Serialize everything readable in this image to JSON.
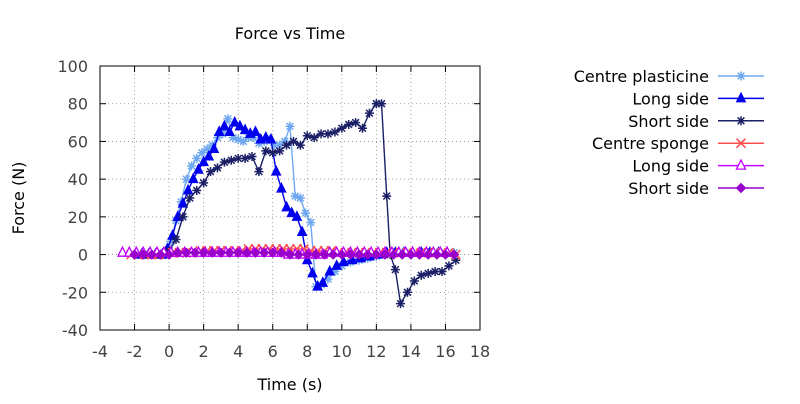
{
  "chart_data": {
    "type": "line",
    "title": "Force vs Time",
    "xlabel": "Time (s)",
    "ylabel": "Force (N)",
    "xlim": [
      -4,
      18
    ],
    "ylim": [
      -40,
      100
    ],
    "xticks": [
      -4,
      -2,
      0,
      2,
      4,
      6,
      8,
      10,
      12,
      14,
      16,
      18
    ],
    "yticks": [
      -40,
      -20,
      0,
      20,
      40,
      60,
      80,
      100
    ],
    "grid": true,
    "legend_position": "right",
    "series": [
      {
        "name": "Centre plasticine",
        "color": "#6fa8f0",
        "marker": "asterisk",
        "x": [
          -1.8,
          -1.4,
          -1.0,
          -0.6,
          -0.2,
          0.1,
          0.4,
          0.7,
          1.0,
          1.3,
          1.6,
          1.9,
          2.2,
          2.5,
          2.8,
          3.1,
          3.4,
          3.7,
          4.0,
          4.3,
          4.6,
          4.9,
          5.2,
          5.5,
          5.8,
          6.1,
          6.4,
          6.7,
          7.0,
          7.3,
          7.6,
          7.9,
          8.2,
          8.5,
          8.8,
          9.2,
          9.6,
          10.0,
          10.5,
          11.0,
          11.5,
          12.0,
          12.5,
          13.0,
          13.5,
          14.0,
          14.5,
          15.0,
          15.5,
          16.0,
          16.5
        ],
        "y": [
          0,
          0,
          0,
          0,
          0,
          7,
          18,
          28,
          40,
          47,
          51,
          54,
          56,
          58,
          62,
          64,
          72,
          62,
          61,
          60,
          62,
          62,
          59,
          60,
          61,
          58,
          58,
          60,
          68,
          31,
          30,
          22,
          17,
          -17,
          -16,
          -13,
          -9,
          -6,
          -4,
          -3,
          -2,
          -1,
          0,
          1,
          1,
          1,
          1,
          1,
          1,
          1,
          1
        ]
      },
      {
        "name": "Long side",
        "color": "#0000ee",
        "marker": "triangle-filled",
        "x": [
          -1.6,
          -1.2,
          -0.8,
          -0.4,
          -0.1,
          0.2,
          0.5,
          0.8,
          1.1,
          1.4,
          1.7,
          2.0,
          2.3,
          2.6,
          2.9,
          3.2,
          3.5,
          3.8,
          4.1,
          4.4,
          4.7,
          5.0,
          5.3,
          5.6,
          5.9,
          6.2,
          6.5,
          6.8,
          7.1,
          7.4,
          7.7,
          8.0,
          8.3,
          8.6,
          8.9,
          9.3,
          9.7,
          10.1,
          10.6,
          11.1,
          11.6,
          12.1,
          12.6,
          13.1,
          13.6,
          14.1,
          14.6,
          15.1,
          15.6,
          16.1
        ],
        "y": [
          0,
          0,
          0,
          0,
          3,
          10,
          20,
          27,
          34,
          40,
          45,
          49,
          52,
          56,
          65,
          68,
          65,
          70,
          68,
          66,
          64,
          65,
          61,
          62,
          61,
          44,
          35,
          25,
          22,
          20,
          12,
          -3,
          -10,
          -17,
          -15,
          -9,
          -6,
          -4,
          -3,
          -2,
          -1,
          0,
          1,
          1,
          1,
          1,
          1,
          1,
          1,
          1
        ]
      },
      {
        "name": "Short side",
        "color": "#1a1f66",
        "marker": "asterisk",
        "x": [
          -1.5,
          -1.0,
          -0.5,
          0.0,
          0.4,
          0.8,
          1.2,
          1.6,
          2.0,
          2.4,
          2.8,
          3.2,
          3.6,
          4.0,
          4.4,
          4.8,
          5.2,
          5.6,
          6.0,
          6.4,
          6.8,
          7.2,
          7.6,
          8.0,
          8.4,
          8.8,
          9.2,
          9.6,
          10.0,
          10.4,
          10.8,
          11.2,
          11.6,
          12.0,
          12.3,
          12.6,
          12.8,
          13.1,
          13.4,
          13.8,
          14.2,
          14.6,
          15.0,
          15.4,
          15.8,
          16.2,
          16.6
        ],
        "y": [
          0,
          0,
          0,
          2,
          8,
          20,
          30,
          34,
          38,
          44,
          46,
          49,
          50,
          51,
          51,
          52,
          44,
          55,
          54,
          55,
          58,
          60,
          58,
          63,
          62,
          64,
          64,
          65,
          67,
          69,
          70,
          67,
          75,
          80,
          80,
          31,
          0,
          -8,
          -26,
          -20,
          -14,
          -11,
          -10,
          -9,
          -9,
          -6,
          -3
        ]
      },
      {
        "name": "Centre sponge",
        "color": "#ff4c4c",
        "marker": "x",
        "x": [
          -2.2,
          -1.8,
          -1.4,
          -1.0,
          -0.6,
          -0.2,
          0.2,
          0.6,
          1.0,
          1.4,
          1.8,
          2.2,
          2.6,
          3.0,
          3.4,
          3.8,
          4.2,
          4.6,
          5.0,
          5.4,
          5.8,
          6.2,
          6.6,
          7.0,
          7.4,
          7.8,
          8.2,
          8.6,
          9.0,
          9.4,
          9.8,
          10.2,
          10.6,
          11.0,
          11.4,
          11.8,
          12.2,
          12.6,
          13.0,
          13.4,
          13.8,
          14.2,
          14.6,
          15.0,
          15.4,
          15.8,
          16.2,
          16.6
        ],
        "y": [
          0,
          0,
          0,
          0,
          0,
          0,
          1,
          1,
          1,
          1,
          2,
          2,
          2,
          2,
          2,
          2,
          2,
          3,
          3,
          3,
          3,
          3,
          3,
          3,
          3,
          3,
          2,
          2,
          2,
          2,
          1,
          1,
          1,
          1,
          1,
          1,
          1,
          1,
          1,
          1,
          1,
          1,
          1,
          1,
          1,
          1,
          1,
          0
        ]
      },
      {
        "name": "Long side",
        "color": "#c000ff",
        "marker": "triangle-open",
        "x": [
          -2.7,
          -2.3,
          -1.9,
          -1.5,
          -1.1,
          -0.7,
          -0.3,
          0.1,
          0.5,
          0.9,
          1.3,
          1.7,
          2.1,
          2.5,
          2.9,
          3.3,
          3.7,
          4.1,
          4.5,
          4.9,
          5.3,
          5.7,
          6.1,
          6.5,
          6.9,
          7.3,
          7.7,
          8.1,
          8.5,
          8.9,
          9.3,
          9.7,
          10.1,
          10.5,
          10.9,
          11.3,
          11.7,
          12.1,
          12.5,
          12.9,
          13.3,
          13.7,
          14.1,
          14.5,
          14.9,
          15.3,
          15.7,
          16.1
        ],
        "y": [
          1,
          1,
          1,
          1,
          1,
          1,
          1,
          1,
          1,
          1,
          1,
          1,
          1,
          1,
          1,
          1,
          1,
          1,
          1,
          1,
          1,
          1,
          1,
          1,
          0,
          0,
          0,
          0,
          0,
          0,
          1,
          1,
          1,
          1,
          1,
          1,
          1,
          1,
          1,
          1,
          1,
          1,
          1,
          1,
          1,
          1,
          1,
          1
        ]
      },
      {
        "name": "Short side",
        "color": "#9900cc",
        "marker": "diamond-filled",
        "x": [
          -2.0,
          -1.5,
          -1.0,
          -0.5,
          0.0,
          0.5,
          1.0,
          1.5,
          2.0,
          2.5,
          3.0,
          3.5,
          4.0,
          4.5,
          5.0,
          5.5,
          6.0,
          6.5,
          7.0,
          7.5,
          8.0,
          8.5,
          9.0,
          9.5,
          10.0,
          10.5,
          11.0,
          11.5,
          12.0,
          12.5,
          13.0,
          13.5,
          14.0,
          14.5,
          15.0,
          15.5,
          16.0,
          16.5
        ],
        "y": [
          0,
          0,
          0,
          0,
          0,
          1,
          1,
          1,
          1,
          1,
          1,
          1,
          1,
          1,
          1,
          1,
          1,
          1,
          0,
          0,
          0,
          0,
          0,
          0,
          0,
          0,
          0,
          0,
          0,
          0,
          0,
          0,
          0,
          0,
          0,
          0,
          0,
          0
        ]
      }
    ]
  }
}
